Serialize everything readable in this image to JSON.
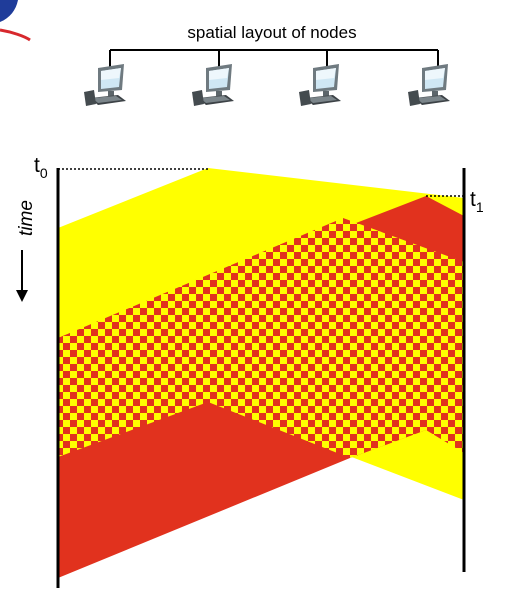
{
  "diagram": {
    "title": "spatial layout of nodes",
    "time_label": "time",
    "t0_label": "t",
    "t0_sub": "0",
    "t1_label": "t",
    "t1_sub": "1",
    "node_count": 4,
    "node_icon": "desktop-computer-icon",
    "colors": {
      "yellow": "#ffff00",
      "red": "#e1321e",
      "line": "#000000",
      "corner_mark": "#1f3c9a",
      "corner_underline": "#d7282d"
    }
  }
}
